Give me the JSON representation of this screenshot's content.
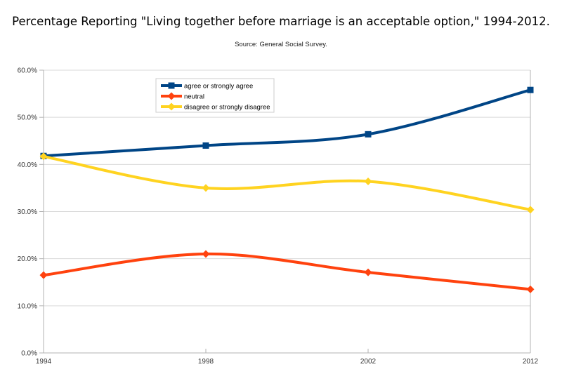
{
  "title": "Percentage Reporting \"Living together before marriage is an acceptable option,\" 1994-2012.",
  "subtitle": "Source: General Social Survey.",
  "chart_data": {
    "type": "line",
    "smooth": true,
    "title": "Percentage Reporting \"Living together before marriage is an acceptable option,\" 1994-2012.",
    "subtitle": "Source: General Social Survey.",
    "categories": [
      "1994",
      "1998",
      "2002",
      "2012"
    ],
    "series": [
      {
        "name": "agree or strongly agree",
        "color": "#004586",
        "marker": "square",
        "values": [
          41.8,
          44.0,
          46.4,
          55.8
        ]
      },
      {
        "name": "neutral",
        "color": "#FF420E",
        "marker": "diamond",
        "values": [
          16.5,
          21.0,
          17.1,
          13.5
        ]
      },
      {
        "name": "disagree or strongly disagree",
        "color": "#FFD320",
        "marker": "diamond",
        "values": [
          41.7,
          35.0,
          36.4,
          30.4
        ]
      }
    ],
    "ylim": [
      0,
      60
    ],
    "ytick_step": 10,
    "ytick_labels": [
      "0.0%",
      "10.0%",
      "20.0%",
      "30.0%",
      "40.0%",
      "50.0%",
      "60.0%"
    ],
    "grid": true,
    "legend_position": "top-left-inside",
    "style_colors": {
      "grid": "#d9d9d9",
      "axis": "#b3b3b3",
      "tick_text": "#333333",
      "legend_border": "#cccccc",
      "legend_fill": "#ffffff",
      "background": "#ffffff"
    }
  }
}
